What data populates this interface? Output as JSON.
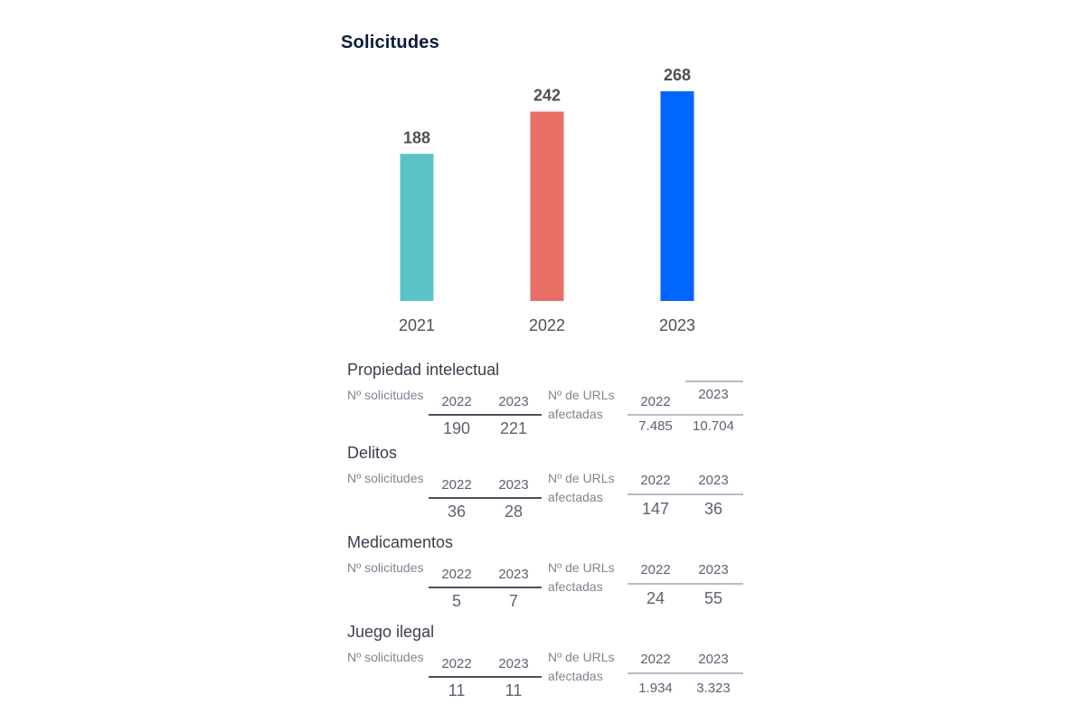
{
  "chart_data": {
    "type": "bar",
    "title": "Solicitudes",
    "categories": [
      "2021",
      "2022",
      "2023"
    ],
    "values": [
      188,
      242,
      268
    ],
    "colors": [
      "#5bc3c7",
      "#e86e66",
      "#0066ff"
    ],
    "ylim": [
      0,
      268
    ],
    "grid": false
  },
  "breakdown": [
    {
      "title": "Propiedad intelectual",
      "solicitudes_label": "Nº solicitudes",
      "solicitudes": {
        "years": [
          "2022",
          "2023"
        ],
        "values": [
          "190",
          "221"
        ]
      },
      "urls_label": "Nº de URLs afectadas",
      "urls": {
        "years": [
          "2022",
          "2023"
        ],
        "values": [
          "7.485",
          "10.704"
        ]
      }
    },
    {
      "title": "Delitos",
      "solicitudes_label": "Nº solicitudes",
      "solicitudes": {
        "years": [
          "2022",
          "2023"
        ],
        "values": [
          "36",
          "28"
        ]
      },
      "urls_label": "Nº de URLs afectadas",
      "urls": {
        "years": [
          "2022",
          "2023"
        ],
        "values": [
          "147",
          "36"
        ]
      }
    },
    {
      "title": "Medicamentos",
      "solicitudes_label": "Nº solicitudes",
      "solicitudes": {
        "years": [
          "2022",
          "2023"
        ],
        "values": [
          "5",
          "7"
        ]
      },
      "urls_label": "Nº de URLs afectadas",
      "urls": {
        "years": [
          "2022",
          "2023"
        ],
        "values": [
          "24",
          "55"
        ]
      }
    },
    {
      "title": "Juego ilegal",
      "solicitudes_label": "Nº solicitudes",
      "solicitudes": {
        "years": [
          "2022",
          "2023"
        ],
        "values": [
          "11",
          "11"
        ]
      },
      "urls_label": "Nº de URLs afectadas",
      "urls": {
        "years": [
          "2022",
          "2023"
        ],
        "values": [
          "1.934",
          "3.323"
        ]
      }
    }
  ]
}
